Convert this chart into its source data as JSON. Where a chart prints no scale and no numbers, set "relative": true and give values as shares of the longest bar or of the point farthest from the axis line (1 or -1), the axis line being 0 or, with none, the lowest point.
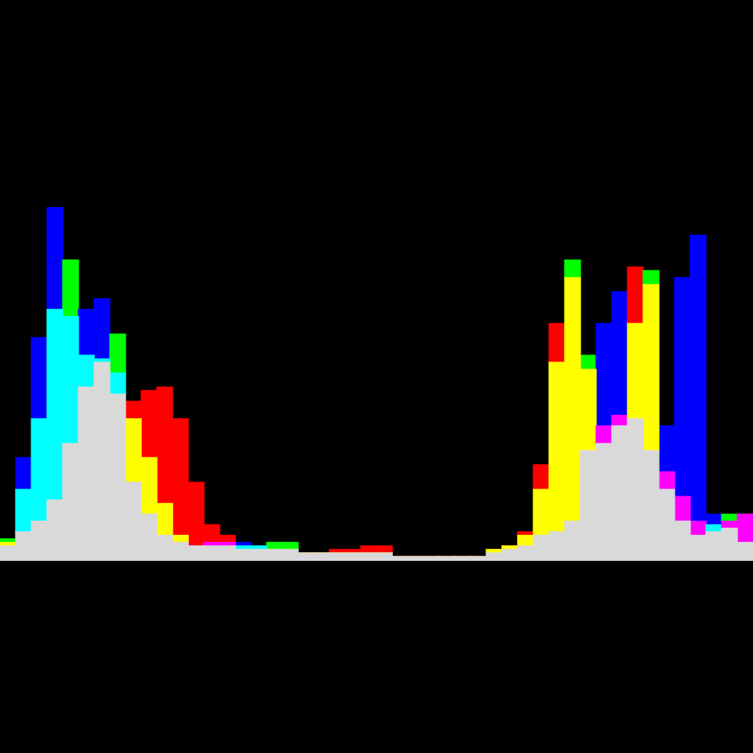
{
  "chart_data": {
    "type": "bar",
    "relative": true,
    "stacked": true,
    "categories": [
      null,
      null,
      null,
      null,
      null,
      null,
      null,
      null,
      null,
      null,
      null,
      null,
      null,
      null,
      null,
      null,
      null,
      null,
      null,
      null,
      null,
      null,
      null,
      null,
      null,
      null,
      null,
      null,
      null,
      null,
      null,
      null,
      null,
      null,
      null,
      null,
      null,
      null,
      null,
      null,
      null,
      null,
      null,
      null,
      null,
      null,
      null,
      null
    ],
    "series": [
      {
        "color": "#d9d9d9",
        "values": [
          0.04,
          0.08,
          0.11,
          0.17,
          0.33,
          0.49,
          0.56,
          0.47,
          0.22,
          0.13,
          0.07,
          0.05,
          0.04,
          0.04,
          0.04,
          0.03,
          0.03,
          0.03,
          0.03,
          0.02,
          0.02,
          0.02,
          0.02,
          0.02,
          0.02,
          0.01,
          0.01,
          0.01,
          0.01,
          0.01,
          0.01,
          0.02,
          0.03,
          0.04,
          0.07,
          0.08,
          0.11,
          0.31,
          0.33,
          0.38,
          0.4,
          0.31,
          0.2,
          0.11,
          0.07,
          0.08,
          0.09,
          0.05
        ]
      },
      {
        "colors": [
          "#ffff00",
          "#00ffff",
          "#00ffff",
          "#00ffff",
          "#00ffff",
          "#00ffff",
          "#00ffff",
          "#00ffff",
          "#ffff00",
          "#ffff00",
          "#ffff00",
          "#ffff00",
          "#ff00ff",
          "#ff00ff",
          "#ff00ff",
          "#00ffff",
          "#00ffff",
          "#ffff00",
          "#ffff00",
          "#ffff00",
          "#ffff00",
          "#ffff00",
          "#ffff00",
          "#ffff00",
          "#ffff00",
          "#ffff00",
          "#ffff00",
          "#ffff00",
          "#ffff00",
          "#ffff00",
          "#ffff00",
          "#ffff00",
          "#ffff00",
          "#ffff00",
          "#ffff00",
          "#ffff00",
          "#ffff00",
          "#ffff00",
          "#ff00ff",
          "#ff00ff",
          "#ffff00",
          "#ffff00",
          "#ff00ff",
          "#ff00ff",
          "#ff00ff",
          "#00ffff",
          "#ff00ff",
          "#ff00ff"
        ],
        "values": [
          0.01,
          0.12,
          0.29,
          0.54,
          0.36,
          0.09,
          0.01,
          0.06,
          0.18,
          0.16,
          0.09,
          0.02,
          0,
          0.01,
          0.01,
          0.01,
          0.01,
          0,
          0,
          0,
          0,
          0,
          0,
          0,
          0,
          0,
          0,
          0,
          0,
          0,
          0,
          0.01,
          0.01,
          0.03,
          0.13,
          0.48,
          0.69,
          0.23,
          0.05,
          0.03,
          0.27,
          0.47,
          0.05,
          0.07,
          0.04,
          0.02,
          0.02,
          0.08
        ]
      },
      {
        "colors": [
          "#00ff00",
          "#0000ff",
          "#0000ff",
          "#0000ff",
          "#00ff00",
          "#0000ff",
          "#0000ff",
          "#00ff00",
          "#ff0000",
          "#ff0000",
          "#ff0000",
          "#ff0000",
          "#ff0000",
          "#ff0000",
          "#ff0000",
          "#0000ff",
          "#0000ff",
          "#00ff00",
          "#00ff00",
          "#ff0000",
          "#ff0000",
          "#ff0000",
          "#ff0000",
          "#ff0000",
          "#ff0000",
          "#ff0000",
          "#ff0000",
          "#ff0000",
          "#ff0000",
          "#ff0000",
          "#ff0000",
          "#ff0000",
          "#ff0000",
          "#ff0000",
          "#ff0000",
          "#ff0000",
          "#00ff00",
          "#00ff00",
          "#0000ff",
          "#0000ff",
          "#ff0000",
          "#00ff00",
          "#0000ff",
          "#0000ff",
          "#0000ff",
          "#0000ff",
          "#00ff00",
          "#00ff00"
        ],
        "values": [
          0.01,
          0.09,
          0.23,
          0.29,
          0.16,
          0.13,
          0.17,
          0.11,
          0.05,
          0.19,
          0.33,
          0.33,
          0.18,
          0.05,
          0.02,
          0.01,
          0,
          0.02,
          0.02,
          0,
          0,
          0.01,
          0.01,
          0.02,
          0.02,
          0,
          0,
          0,
          0,
          0,
          0,
          0,
          0,
          0.01,
          0.07,
          0.11,
          0.05,
          0.04,
          0.29,
          0.35,
          0.16,
          0.04,
          0.13,
          0.62,
          0.81,
          0.03,
          0.02,
          0
        ]
      }
    ]
  }
}
